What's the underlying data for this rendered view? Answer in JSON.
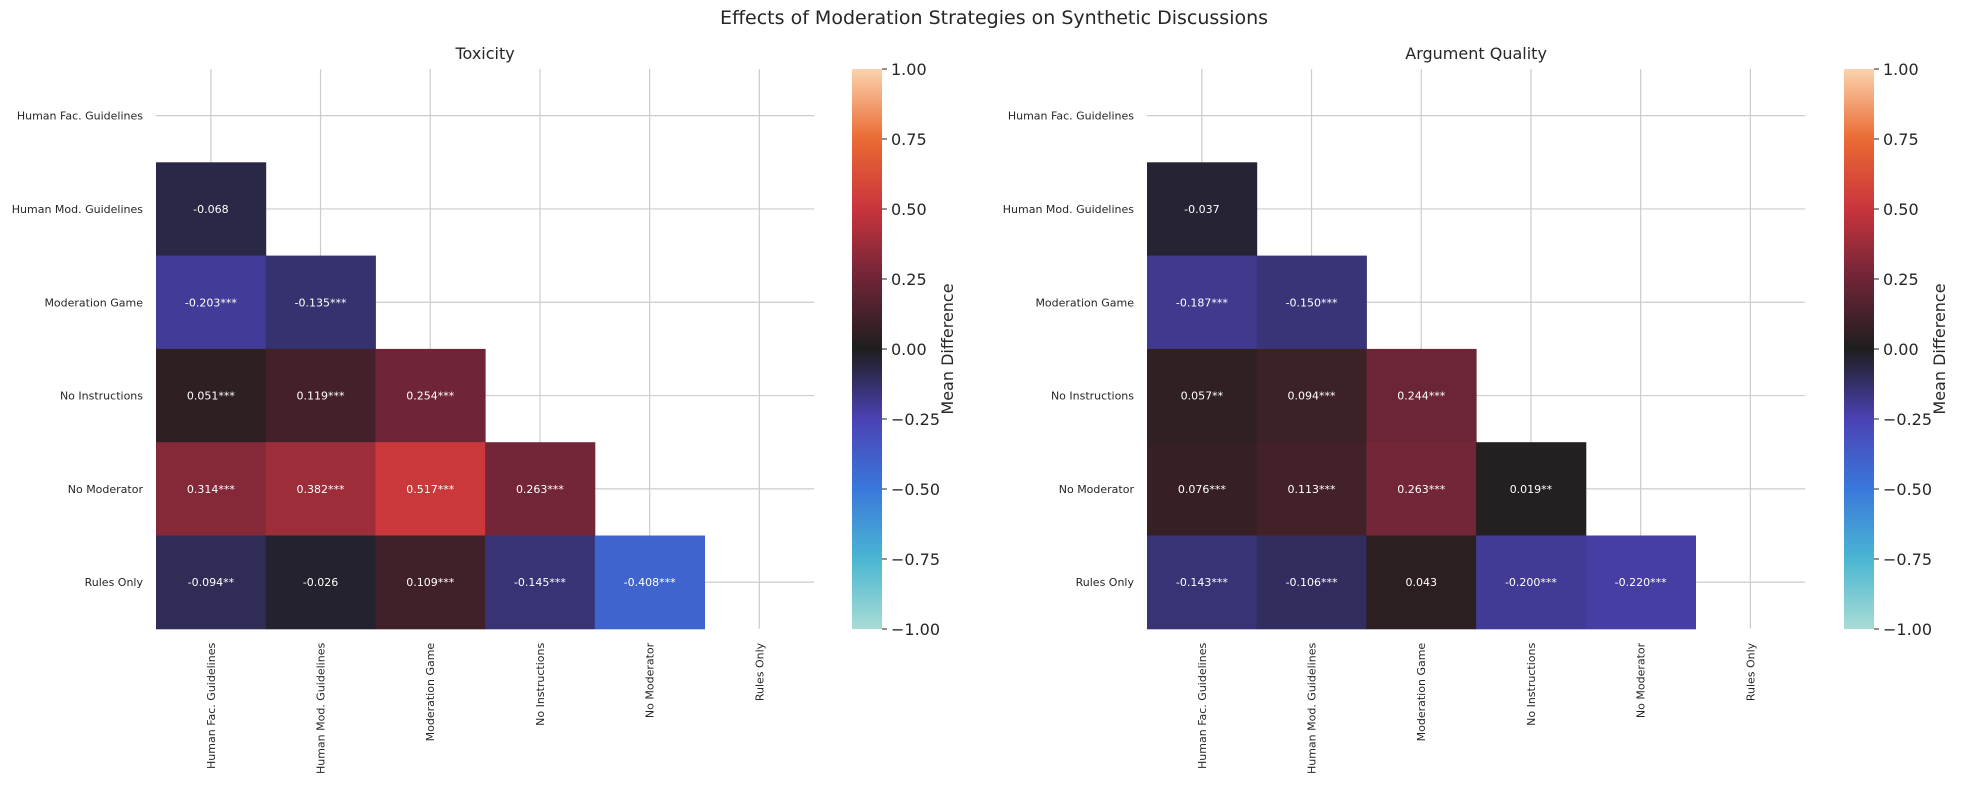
{
  "figure_title": "Effects of Moderation Strategies on Synthetic Discussions",
  "colors": {
    "scale_neg1": "#a8dcd4",
    "scale_neg075": "#4ab6d2",
    "scale_neg05": "#3a78db",
    "scale_neg025": "#4b42b4",
    "scale_0": "#1e1e1e",
    "scale_025": "#6e2537",
    "scale_05": "#c9343c",
    "scale_075": "#ea6a33",
    "scale_1": "#fbd3ad"
  },
  "chart_data": [
    {
      "type": "heatmap",
      "title": "Toxicity",
      "rows": [
        "Human Fac. Guidelines",
        "Human Mod. Guidelines",
        "Moderation Game",
        "No Instructions",
        "No Moderator",
        "Rules Only"
      ],
      "columns": [
        "Human Fac. Guidelines",
        "Human Mod. Guidelines",
        "Moderation Game",
        "No Instructions",
        "No Moderator",
        "Rules Only"
      ],
      "values": [
        [
          null,
          null,
          null,
          null,
          null,
          null
        ],
        [
          -0.068,
          null,
          null,
          null,
          null,
          null
        ],
        [
          -0.203,
          -0.135,
          null,
          null,
          null,
          null
        ],
        [
          0.051,
          0.119,
          0.254,
          null,
          null,
          null
        ],
        [
          0.314,
          0.382,
          0.517,
          0.263,
          null,
          null
        ],
        [
          -0.094,
          -0.026,
          0.109,
          -0.145,
          -0.408,
          null
        ]
      ],
      "labels": [
        [
          null,
          null,
          null,
          null,
          null,
          null
        ],
        [
          "-0.068",
          null,
          null,
          null,
          null,
          null
        ],
        [
          "-0.203***",
          "-0.135***",
          null,
          null,
          null,
          null
        ],
        [
          "0.051***",
          "0.119***",
          "0.254***",
          null,
          null,
          null
        ],
        [
          "0.314***",
          "0.382***",
          "0.517***",
          "0.263***",
          null,
          null
        ],
        [
          "-0.094**",
          "-0.026",
          "0.109***",
          "-0.145***",
          "-0.408***",
          null
        ]
      ],
      "colorbar": {
        "label": "Mean Difference",
        "vmin": -1.0,
        "vmax": 1.0,
        "ticks": [
          "1.00",
          "0.75",
          "0.50",
          "0.25",
          "0.00",
          "−0.25",
          "−0.50",
          "−0.75",
          "−1.00"
        ]
      },
      "grid": true
    },
    {
      "type": "heatmap",
      "title": "Argument Quality",
      "rows": [
        "Human Fac. Guidelines",
        "Human Mod. Guidelines",
        "Moderation Game",
        "No Instructions",
        "No Moderator",
        "Rules Only"
      ],
      "columns": [
        "Human Fac. Guidelines",
        "Human Mod. Guidelines",
        "Moderation Game",
        "No Instructions",
        "No Moderator",
        "Rules Only"
      ],
      "values": [
        [
          null,
          null,
          null,
          null,
          null,
          null
        ],
        [
          -0.037,
          null,
          null,
          null,
          null,
          null
        ],
        [
          -0.187,
          -0.15,
          null,
          null,
          null,
          null
        ],
        [
          0.057,
          0.094,
          0.244,
          null,
          null,
          null
        ],
        [
          0.076,
          0.113,
          0.263,
          0.019,
          null,
          null
        ],
        [
          -0.143,
          -0.106,
          0.043,
          -0.2,
          -0.22,
          null
        ]
      ],
      "labels": [
        [
          null,
          null,
          null,
          null,
          null,
          null
        ],
        [
          "-0.037",
          null,
          null,
          null,
          null,
          null
        ],
        [
          "-0.187***",
          "-0.150***",
          null,
          null,
          null,
          null
        ],
        [
          "0.057**",
          "0.094***",
          "0.244***",
          null,
          null,
          null
        ],
        [
          "0.076***",
          "0.113***",
          "0.263***",
          "0.019**",
          null,
          null
        ],
        [
          "-0.143***",
          "-0.106***",
          "0.043",
          "-0.200***",
          "-0.220***",
          null
        ]
      ],
      "colorbar": {
        "label": "Mean Difference",
        "vmin": -1.0,
        "vmax": 1.0,
        "ticks": [
          "1.00",
          "0.75",
          "0.50",
          "0.25",
          "0.00",
          "−0.25",
          "−0.50",
          "−0.75",
          "−1.00"
        ]
      },
      "grid": true
    }
  ]
}
